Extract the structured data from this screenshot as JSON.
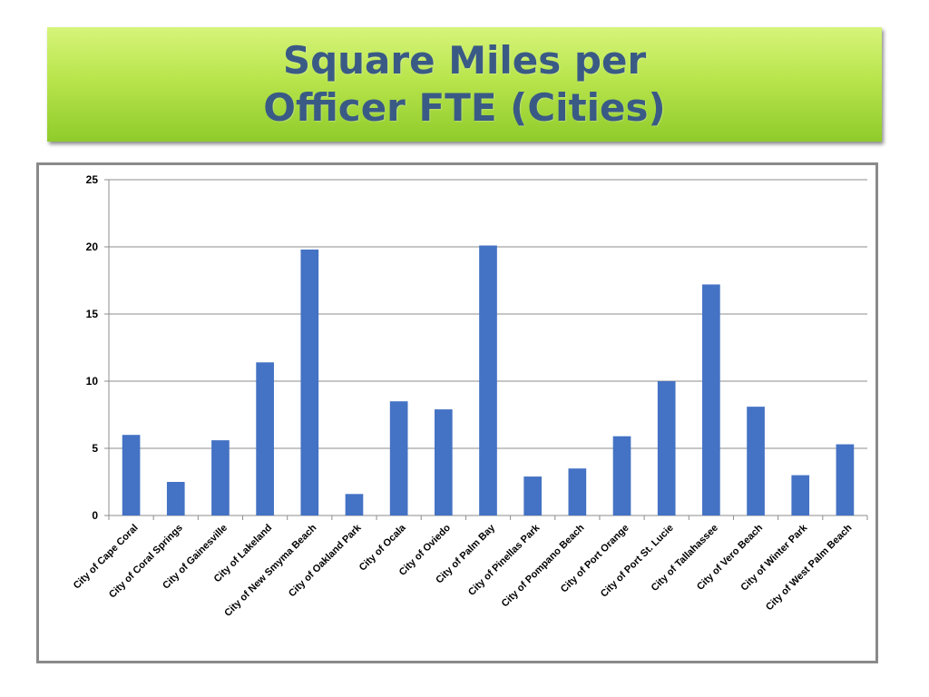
{
  "title": {
    "line1": "Square Miles per",
    "line2": "Officer FTE (Cities)"
  },
  "colors": {
    "bar": "#4472c4",
    "grid": "#8c8c8c",
    "banner": "#b9e54c",
    "title": "#3a5a86"
  },
  "chart_data": {
    "type": "bar",
    "title": "",
    "xlabel": "",
    "ylabel": "",
    "ylim": [
      0,
      25
    ],
    "yticks": [
      0,
      5,
      10,
      15,
      20,
      25
    ],
    "grid": true,
    "categories": [
      "City of Cape Coral",
      "City of Coral Springs",
      "City of Gainesville",
      "City of Lakeland",
      "City of New Smyma Beach",
      "City of Oakland Park",
      "City of Ocala",
      "City of Oviedo",
      "City of Palm Bay",
      "City of Pinellas Park",
      "City of Pompano Beach",
      "City of Port Orange",
      "City of Port St. Lucie",
      "City of Tallahassee",
      "City of Vero Beach",
      "City of Winter Park",
      "City of West Palm Beach"
    ],
    "values": [
      6.0,
      2.5,
      5.6,
      11.4,
      19.8,
      1.6,
      8.5,
      7.9,
      20.1,
      2.9,
      3.5,
      5.9,
      10.0,
      17.2,
      8.1,
      3.0,
      5.3
    ]
  }
}
